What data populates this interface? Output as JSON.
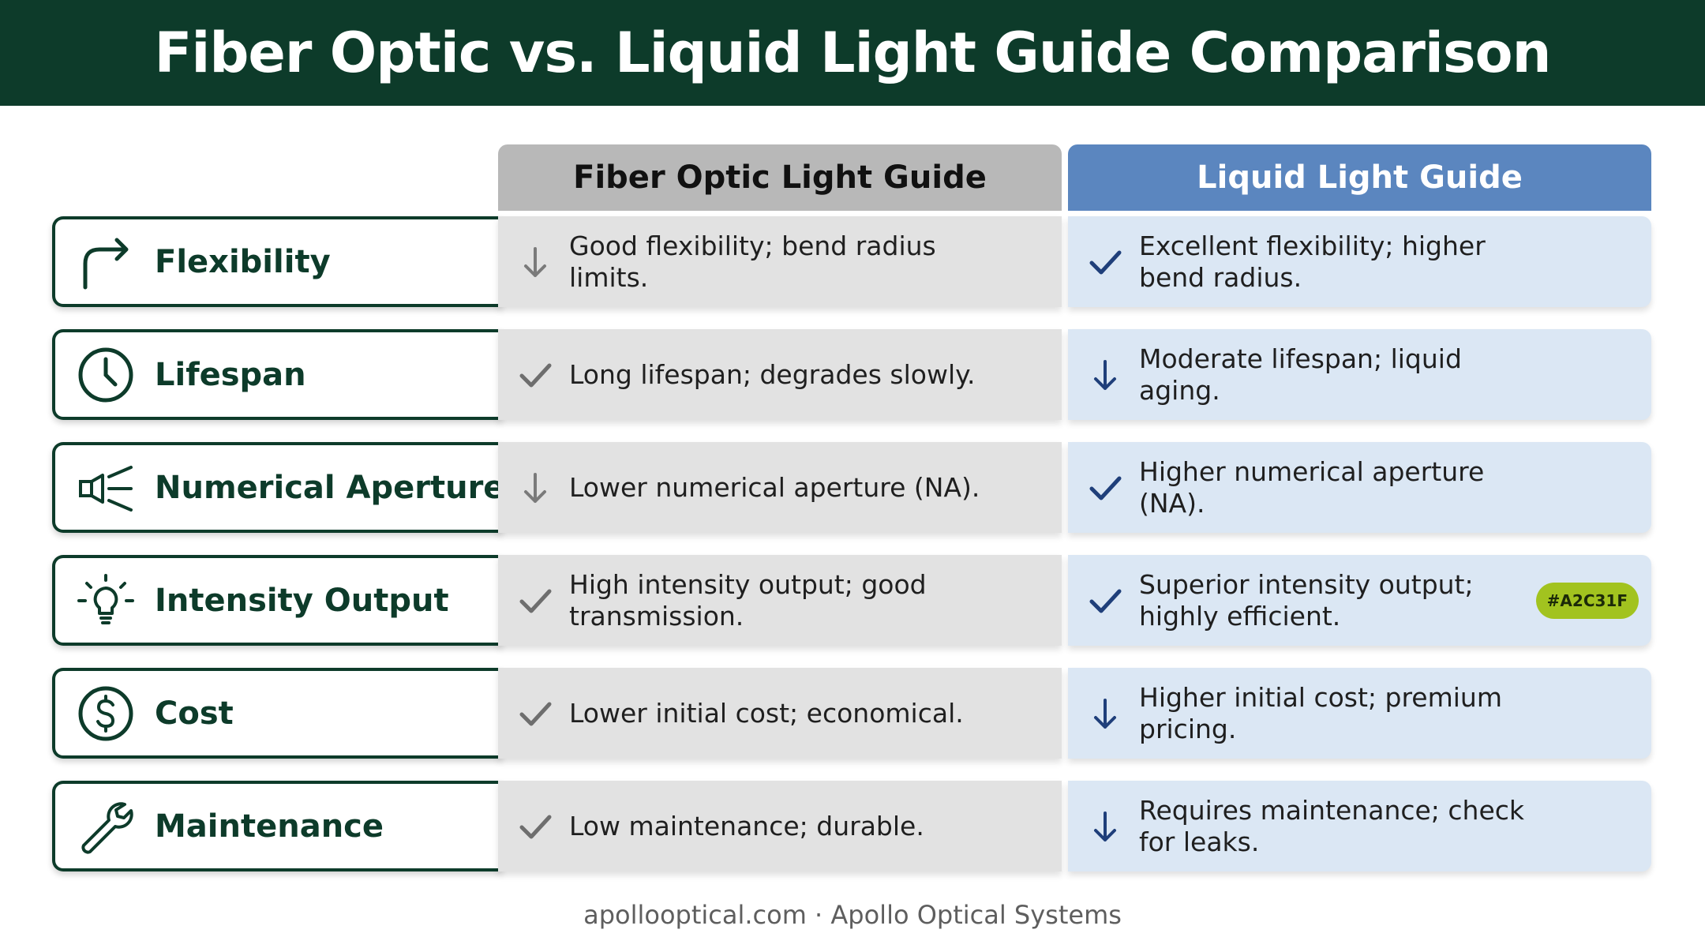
{
  "title": "Fiber Optic vs. Liquid Light Guide Comparison",
  "columns": {
    "fiber": "Fiber Optic Light Guide",
    "liquid": "Liquid Light Guide"
  },
  "colors": {
    "title_bg": "#0d3b2a",
    "fiber_header": "#b8b8b8",
    "liquid_header": "#5b86bf",
    "badge": "#a2c31f"
  },
  "rows": [
    {
      "label": "Flexibility",
      "icon": "turn-right-arrow-icon",
      "fiber": {
        "text": "Good flexibility; bend radius limits.",
        "mark": "down-arrow"
      },
      "liquid": {
        "text": "Excellent flexibility; higher bend radius.",
        "mark": "check"
      }
    },
    {
      "label": "Lifespan",
      "icon": "clock-icon",
      "fiber": {
        "text": "Long lifespan; degrades slowly.",
        "mark": "check"
      },
      "liquid": {
        "text": "Moderate lifespan; liquid aging.",
        "mark": "down-arrow"
      }
    },
    {
      "label": "Numerical Aperture",
      "icon": "light-cone-icon",
      "fiber": {
        "text": "Lower numerical aperture (NA).",
        "mark": "down-arrow"
      },
      "liquid": {
        "text": "Higher numerical aperture (NA).",
        "mark": "check"
      }
    },
    {
      "label": "Intensity Output",
      "icon": "lightbulb-icon",
      "fiber": {
        "text": "High intensity output; good transmission.",
        "mark": "check"
      },
      "liquid": {
        "text": "Superior intensity output; highly efficient.",
        "mark": "check",
        "badge": "#A2C31F"
      }
    },
    {
      "label": "Cost",
      "icon": "dollar-icon",
      "fiber": {
        "text": "Lower initial cost; economical.",
        "mark": "check"
      },
      "liquid": {
        "text": "Higher initial cost; premium pricing.",
        "mark": "down-arrow"
      }
    },
    {
      "label": "Maintenance",
      "icon": "wrench-icon",
      "fiber": {
        "text": "Low maintenance; durable.",
        "mark": "check"
      },
      "liquid": {
        "text": "Requires maintenance; check for leaks.",
        "mark": "down-arrow"
      }
    }
  ],
  "footer": "apollooptical.com · Apollo Optical Systems"
}
